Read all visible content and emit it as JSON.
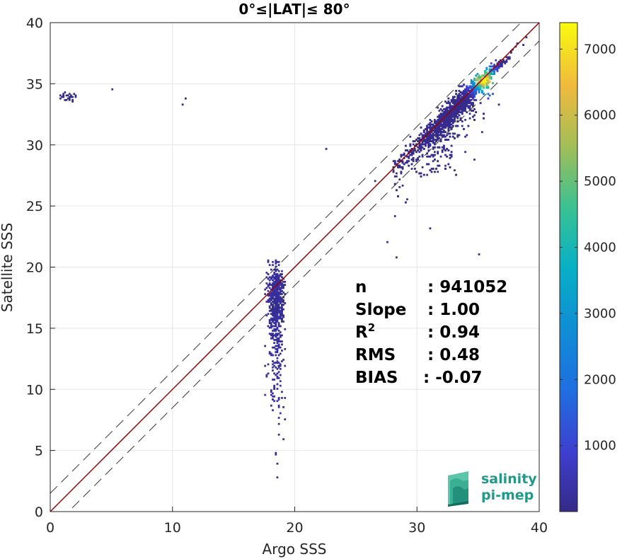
{
  "chart_data": {
    "type": "heatmap",
    "title": "0°≤|LAT|≤ 80°",
    "xlabel": "Argo SSS",
    "ylabel": "Satellite SSS",
    "xlim": [
      0,
      40
    ],
    "ylim": [
      0,
      40
    ],
    "xticks": [
      "0",
      "10",
      "20",
      "30",
      "40"
    ],
    "yticks": [
      "0",
      "5",
      "10",
      "15",
      "20",
      "25",
      "30",
      "35",
      "40"
    ],
    "grid": true,
    "reference_lines": {
      "identity": {
        "slope": 1.0,
        "intercept": 0.0,
        "color": "#9b0000"
      },
      "upper_bound": {
        "slope": 1.0,
        "intercept": 1.5,
        "style": "dashed"
      },
      "lower_bound": {
        "slope": 1.0,
        "intercept": -1.5,
        "style": "dashed"
      }
    },
    "clusters": [
      {
        "x_center": 35.5,
        "y_center": 35.3,
        "x_range": [
          28,
          40
        ],
        "y_range": [
          21,
          40
        ],
        "peak_count": 7400
      },
      {
        "x_center": 18.5,
        "y_center": 17.5,
        "x_range": [
          17.5,
          19.2
        ],
        "y_range": [
          1.5,
          21
        ],
        "peak_count": 300
      },
      {
        "x_center": 1.5,
        "y_center": 34.0,
        "x_range": [
          0.5,
          2.2
        ],
        "y_range": [
          33.5,
          34.6
        ],
        "peak_count": 20
      }
    ],
    "colorbar": {
      "min": 1,
      "max": 7400,
      "ticks": [
        "1000",
        "2000",
        "3000",
        "4000",
        "5000",
        "6000",
        "7000"
      ],
      "colormap": "parula"
    },
    "stats": [
      {
        "label": "n",
        "value": ": 941052"
      },
      {
        "label": "Slope",
        "value": ": 1.00"
      },
      {
        "label": "R",
        "superscript": "2",
        "value": ": 0.94"
      },
      {
        "label": "RMS",
        "value": ": 0.48"
      },
      {
        "label": "BIAS",
        "value": ": -0.07"
      }
    ]
  },
  "logo": {
    "line1": "salinity",
    "line2": "pi-mep",
    "color": "#1f9a8a"
  }
}
